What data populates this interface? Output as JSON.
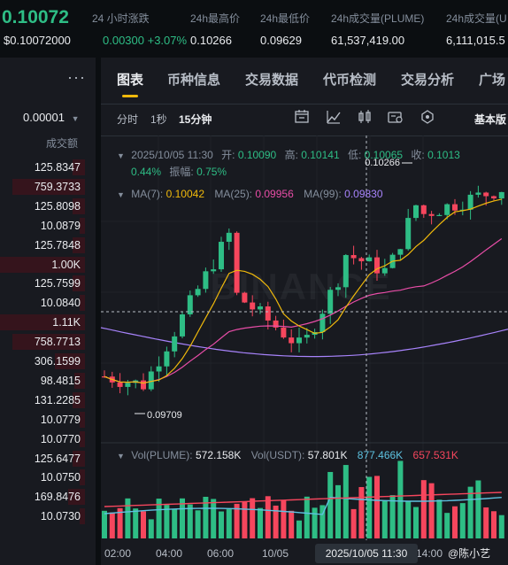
{
  "header": {
    "price": "0.10072",
    "price_usd": "$0.10072000",
    "stats": [
      {
        "label": "24 小时涨跌",
        "value": "0.00300 +3.07%"
      },
      {
        "label": "24h最高价",
        "value": "0.10266"
      },
      {
        "label": "24h最低价",
        "value": "0.09629"
      },
      {
        "label": "24h成交量(PLUME)",
        "value": "61,537,419.00"
      },
      {
        "label": "24h成交量(U",
        "value": "6,111,015.5"
      }
    ]
  },
  "orderbook": {
    "more": "···",
    "step": "0.00001",
    "volume_header": "成交额",
    "rows": [
      {
        "value": "125.8347",
        "depth": 0.15
      },
      {
        "value": "759.3733",
        "depth": 0.85
      },
      {
        "value": "125.8098",
        "depth": 0.15
      },
      {
        "value": "10.0879",
        "depth": 0.04
      },
      {
        "value": "125.7848",
        "depth": 0.15
      },
      {
        "value": "1.00K",
        "depth": 1.0
      },
      {
        "value": "125.7599",
        "depth": 0.15
      },
      {
        "value": "10.0840",
        "depth": 0.04
      },
      {
        "value": "1.11K",
        "depth": 1.0
      },
      {
        "value": "758.7713",
        "depth": 0.85
      },
      {
        "value": "306.1599",
        "depth": 0.35
      },
      {
        "value": "98.4815",
        "depth": 0.12
      },
      {
        "value": "131.2285",
        "depth": 0.15
      },
      {
        "value": "10.0779",
        "depth": 0.04
      },
      {
        "value": "10.0770",
        "depth": 0.04
      },
      {
        "value": "125.6477",
        "depth": 0.15
      },
      {
        "value": "10.0750",
        "depth": 0.04
      },
      {
        "value": "169.8476",
        "depth": 0.2
      },
      {
        "value": "10.0730",
        "depth": 0.04
      }
    ]
  },
  "tabs": [
    "图表",
    "币种信息",
    "交易数据",
    "代币检测",
    "交易分析",
    "广场"
  ],
  "toolbar": {
    "intervals": [
      "分时",
      "1秒",
      "15分钟"
    ],
    "active_interval": "15分钟",
    "mode": "基本版",
    "icons": [
      "indicator-icon",
      "chart-type-icon",
      "candle-icon",
      "settings-icon",
      "drawing-icon"
    ]
  },
  "candle_info": {
    "time": "2025/10/05 11:30",
    "open_label": "开:",
    "open": "0.10090",
    "high_label": "高:",
    "high": "0.10141",
    "low_label": "低:",
    "low": "0.10065",
    "close_label": "收:",
    "close": "0.1013",
    "change": "0.44%",
    "amp_label": "振幅:",
    "amp": "0.75%"
  },
  "ma": {
    "ma7_label": "MA(7):",
    "ma7": "0.10042",
    "ma25_label": "MA(25):",
    "ma25": "0.09956",
    "ma99_label": "MA(99):",
    "ma99": "0.09830"
  },
  "markers": {
    "high": "0.10266",
    "low": "0.09709"
  },
  "watermark": "BINANCE",
  "volume_info": {
    "vol_label": "Vol(PLUME):",
    "vol": "572.158K",
    "usdt_label": "Vol(USDT):",
    "usdt": "57.801K",
    "ma1": "877.466K",
    "ma2": "657.531K"
  },
  "xaxis": {
    "ticks": [
      "02:00",
      "04:00",
      "06:00",
      "10/05",
      "14:00"
    ],
    "crosshair_time": "2025/10/05 11:30"
  },
  "colors": {
    "up": "#2ebd85",
    "down": "#f6465d",
    "accent": "#f0b90b",
    "ma7": "#f0b90b",
    "ma25": "#e84da7",
    "ma99": "#a783fb",
    "vol_ma1": "#5dc2e0",
    "vol_ma2": "#f6465d"
  },
  "footer_credit": "@陈小艺"
}
